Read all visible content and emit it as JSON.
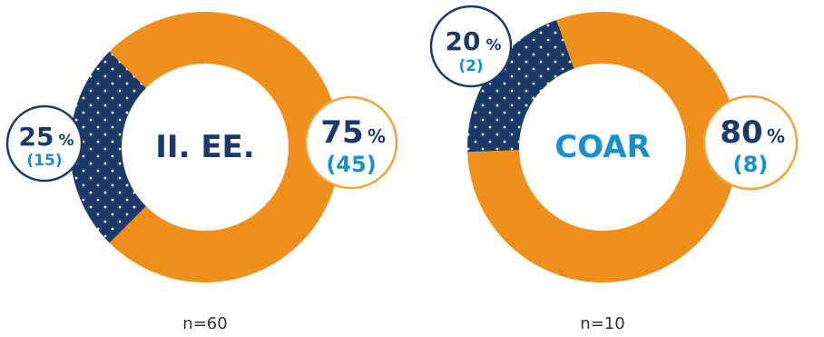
{
  "colors": {
    "primary_segment": "#f0901c",
    "secondary_segment": "#1b3a6b",
    "dot": "#ffffff",
    "center_text_left": "#1b3a6b",
    "center_text_right": "#1a8fd0",
    "bubble_border_secondary": "#1b3a6b",
    "bubble_border_primary": "#f0a33c",
    "count_text": "#1a8fd0",
    "percent_text": "#1b3a6b"
  },
  "chart_data": [
    {
      "type": "pie",
      "style": "donut",
      "center_label": "II. EE.",
      "n_label": "n=60",
      "slices": [
        {
          "percent": 75,
          "count": 45,
          "percent_label": "75",
          "sign": "%",
          "count_label": "(45)",
          "pattern": "solid"
        },
        {
          "percent": 25,
          "count": 15,
          "percent_label": "25",
          "sign": "%",
          "count_label": "(15)",
          "pattern": "dotted"
        }
      ]
    },
    {
      "type": "pie",
      "style": "donut",
      "center_label": "COAR",
      "n_label": "n=10",
      "slices": [
        {
          "percent": 80,
          "count": 8,
          "percent_label": "80",
          "sign": "%",
          "count_label": "(8)",
          "pattern": "solid"
        },
        {
          "percent": 20,
          "count": 2,
          "percent_label": "20",
          "sign": "%",
          "count_label": "(2)",
          "pattern": "dotted"
        }
      ]
    }
  ]
}
